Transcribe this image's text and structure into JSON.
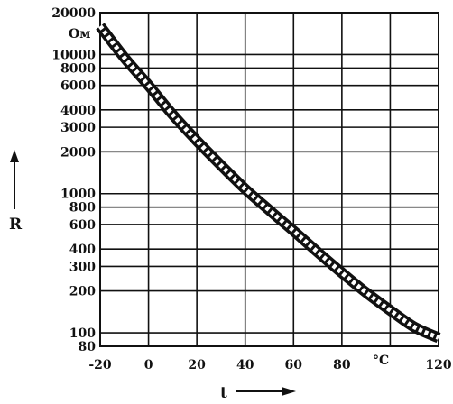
{
  "chart_data": {
    "type": "line",
    "x": [
      -20,
      -10,
      0,
      10,
      20,
      30,
      40,
      50,
      60,
      70,
      80,
      90,
      100,
      110,
      120
    ],
    "series": [
      {
        "values": [
          16000,
          9500,
          6000,
          3700,
          2400,
          1600,
          1080,
          760,
          540,
          380,
          270,
          195,
          145,
          110,
          92
        ]
      }
    ],
    "xlabel": "t",
    "ylabel": "R",
    "x_unit_label": "°C",
    "y_unit_label": "Ом",
    "x_ticks": [
      "-20",
      "0",
      "20",
      "40",
      "60",
      "80",
      "120"
    ],
    "x_tick_values": [
      -20,
      0,
      20,
      40,
      60,
      80,
      120
    ],
    "y_ticks": [
      "20000",
      "10000",
      "8000",
      "6000",
      "4000",
      "3000",
      "2000",
      "1000",
      "800",
      "600",
      "400",
      "300",
      "200",
      "100",
      "80"
    ],
    "y_tick_values": [
      20000,
      10000,
      8000,
      6000,
      4000,
      3000,
      2000,
      1000,
      800,
      600,
      400,
      300,
      200,
      100,
      80
    ],
    "xlim": [
      -20,
      120
    ],
    "ylim": [
      80,
      20000
    ],
    "y_scale": "log",
    "grid": true,
    "line_color": "#111111",
    "line_fill_color": "#ffffff"
  }
}
